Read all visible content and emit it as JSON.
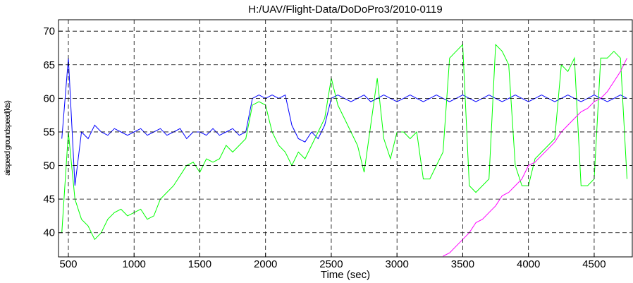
{
  "chart_data": {
    "type": "line",
    "title": "H:/UAV/Flight-Data/DoDoPro3/2010-0119",
    "xlabel": "Time   (sec)",
    "ylabel": "airspeed groundspeed(kts)",
    "x": [
      450,
      500,
      550,
      600,
      650,
      700,
      750,
      800,
      850,
      900,
      950,
      1000,
      1050,
      1100,
      1150,
      1200,
      1250,
      1300,
      1350,
      1400,
      1450,
      1500,
      1550,
      1600,
      1650,
      1700,
      1750,
      1800,
      1850,
      1900,
      1950,
      2000,
      2050,
      2100,
      2150,
      2200,
      2250,
      2300,
      2350,
      2400,
      2450,
      2500,
      2550,
      2600,
      2650,
      2700,
      2750,
      2800,
      2850,
      2900,
      2950,
      3000,
      3050,
      3100,
      3150,
      3200,
      3250,
      3300,
      3350,
      3400,
      3450,
      3500,
      3550,
      3600,
      3650,
      3700,
      3750,
      3800,
      3850,
      3900,
      3950,
      4000,
      4050,
      4100,
      4150,
      4200,
      4250,
      4300,
      4350,
      4400,
      4450,
      4500,
      4550,
      4600,
      4650,
      4700,
      4750
    ],
    "series": [
      {
        "color": "#0000ff",
        "values": [
          54,
          66,
          47,
          55,
          54,
          56,
          55,
          54.5,
          55.5,
          55,
          54.5,
          55,
          55.5,
          54.5,
          55,
          55.5,
          54.5,
          55,
          55.5,
          54,
          55,
          55,
          54.5,
          55.5,
          54.5,
          55,
          55.5,
          54.5,
          55,
          60,
          60.5,
          60,
          60.5,
          60,
          60.5,
          56,
          54,
          53.5,
          55,
          54,
          56,
          60,
          60.5,
          60,
          59.5,
          60,
          60.5,
          59.5,
          60,
          60.5,
          60,
          59.5,
          60,
          60.5,
          60,
          59.5,
          60,
          60.5,
          60,
          59.5,
          60,
          60.5,
          60,
          59.5,
          60,
          60.5,
          60,
          59.5,
          60,
          60.5,
          60,
          59.5,
          60,
          60.5,
          60,
          59.5,
          60,
          60.5,
          60,
          59.5,
          60,
          60.5,
          60,
          59.5,
          60,
          60.5,
          60
        ]
      },
      {
        "color": "#00ff00",
        "values": [
          40,
          55,
          45,
          42,
          41,
          39,
          40,
          42,
          43,
          43.5,
          42.5,
          43,
          43.5,
          42,
          42.5,
          45,
          46,
          47,
          48.5,
          50,
          50.5,
          49,
          51,
          50.5,
          51,
          53,
          52,
          53,
          54,
          59,
          59.5,
          59,
          55,
          53,
          52,
          50,
          52,
          51,
          53,
          55,
          57,
          63,
          59,
          57,
          55,
          53,
          49,
          56,
          63,
          54,
          51,
          55,
          55,
          54,
          55,
          48,
          48,
          50,
          52,
          66,
          67,
          68,
          47,
          46,
          47,
          48,
          68,
          67,
          65,
          50,
          47,
          47,
          51,
          52,
          53,
          54,
          65,
          64,
          66,
          47,
          47,
          48,
          66,
          66,
          67,
          66,
          48
        ]
      },
      {
        "color": "#ff00ff",
        "values": [
          null,
          null,
          null,
          null,
          null,
          null,
          null,
          null,
          null,
          null,
          null,
          null,
          null,
          null,
          null,
          null,
          null,
          null,
          null,
          null,
          null,
          null,
          null,
          null,
          null,
          null,
          null,
          null,
          null,
          null,
          null,
          null,
          null,
          null,
          null,
          null,
          null,
          null,
          null,
          null,
          null,
          null,
          null,
          null,
          null,
          null,
          null,
          null,
          null,
          null,
          null,
          null,
          null,
          null,
          null,
          null,
          null,
          null,
          36.5,
          37,
          38,
          39,
          40,
          41.5,
          42,
          43,
          44,
          45.5,
          46,
          47,
          48,
          50,
          50.5,
          51.5,
          52.5,
          53.5,
          55,
          56,
          57,
          58,
          58.5,
          59.5,
          60,
          61,
          62.5,
          64,
          66
        ]
      }
    ],
    "xlim": [
      425,
      4790
    ],
    "ylim": [
      36.4,
      71.7
    ],
    "xticks": [
      500,
      1000,
      1500,
      2000,
      2500,
      3000,
      3500,
      4000,
      4500
    ],
    "yticks": [
      40,
      45,
      50,
      55,
      60,
      65,
      70
    ],
    "grid": true
  }
}
